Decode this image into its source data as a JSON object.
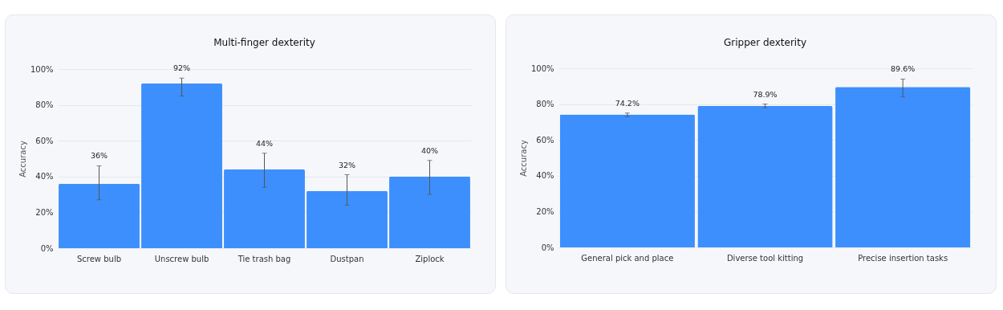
{
  "chart_data": [
    {
      "type": "bar",
      "title": "Multi-finger dexterity",
      "ylabel": "Accuracy",
      "categories": [
        "Screw bulb",
        "Unscrew bulb",
        "Tie trash bag",
        "Dustpan",
        "Ziplock"
      ],
      "values": [
        36,
        92,
        44,
        32,
        40
      ],
      "value_labels": [
        "36%",
        "92%",
        "44%",
        "32%",
        "40%"
      ],
      "errors": [
        [
          27,
          46
        ],
        [
          85,
          95
        ],
        [
          34,
          53
        ],
        [
          24,
          41
        ],
        [
          30,
          49
        ]
      ],
      "color": "#3d8ffd",
      "ylim": [
        0,
        100
      ],
      "yticks": [
        {
          "value": 0,
          "label": "0%"
        },
        {
          "value": 20,
          "label": "20%"
        },
        {
          "value": 40,
          "label": "40%"
        },
        {
          "value": 60,
          "label": "60%"
        },
        {
          "value": 80,
          "label": "80%"
        },
        {
          "value": 100,
          "label": "100%"
        }
      ],
      "grid": "y"
    },
    {
      "type": "bar",
      "title": "Gripper dexterity",
      "ylabel": "Accuracy",
      "categories": [
        "General pick and place",
        "Diverse tool kitting",
        "Precise insertion tasks"
      ],
      "values": [
        74.2,
        78.9,
        89.6
      ],
      "value_labels": [
        "74.2%",
        "78.9%",
        "89.6%"
      ],
      "errors": [
        [
          73,
          75
        ],
        [
          78,
          80
        ],
        [
          84,
          94
        ]
      ],
      "color": "#3d8ffd",
      "ylim": [
        0,
        100
      ],
      "yticks": [
        {
          "value": 0,
          "label": "0%"
        },
        {
          "value": 20,
          "label": "20%"
        },
        {
          "value": 40,
          "label": "40%"
        },
        {
          "value": 60,
          "label": "60%"
        },
        {
          "value": 80,
          "label": "80%"
        },
        {
          "value": 100,
          "label": "100%"
        }
      ],
      "grid": "y"
    }
  ]
}
